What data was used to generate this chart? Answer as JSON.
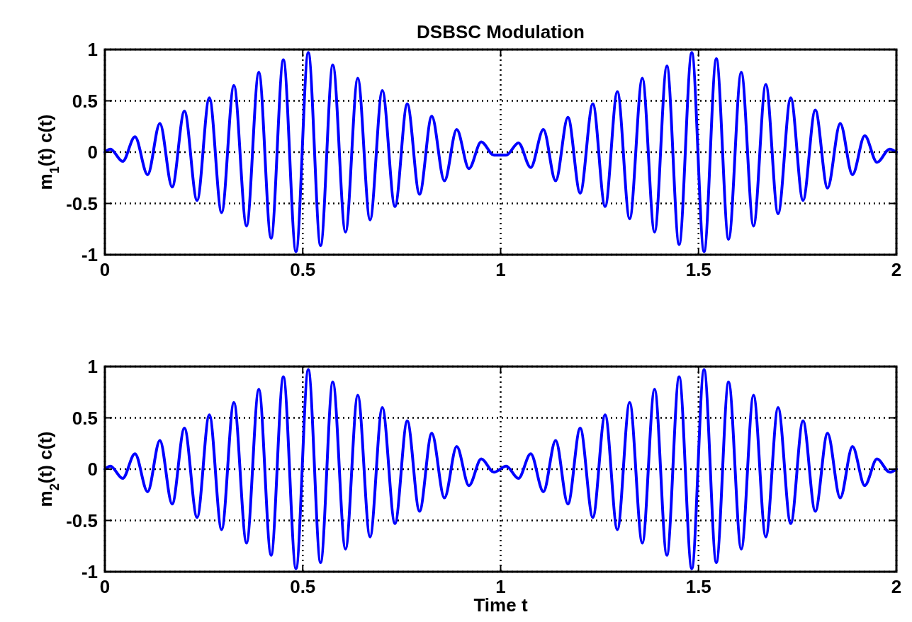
{
  "chart_data": [
    {
      "type": "line",
      "title": "DSBSC Modulation",
      "ylabel": "m$_{1}$(t) c(t)",
      "xlim": [
        0,
        2
      ],
      "ylim": [
        -1,
        1
      ],
      "xticks": [
        0,
        0.5,
        1,
        1.5,
        2
      ],
      "yticks": [
        -1,
        -0.5,
        0,
        0.5,
        1
      ],
      "grid": true,
      "line_style": "solid",
      "x": [
        0,
        0.014,
        0.045,
        0.076,
        0.108,
        0.139,
        0.17,
        0.201,
        0.233,
        0.264,
        0.295,
        0.326,
        0.358,
        0.389,
        0.42,
        0.451,
        0.483,
        0.514,
        0.545,
        0.576,
        0.608,
        0.639,
        0.67,
        0.701,
        0.733,
        0.764,
        0.795,
        0.826,
        0.858,
        0.889,
        0.92,
        0.951,
        0.983,
        1.014,
        1.045,
        1.076,
        1.108,
        1.139,
        1.17,
        1.201,
        1.233,
        1.264,
        1.295,
        1.326,
        1.358,
        1.389,
        1.42,
        1.451,
        1.483,
        1.514,
        1.545,
        1.576,
        1.608,
        1.639,
        1.67,
        1.701,
        1.733,
        1.764,
        1.795,
        1.826,
        1.858,
        1.889,
        1.92,
        1.951,
        1.983,
        2
      ],
      "series": [
        {
          "color": "#0000ff",
          "values": [
            0,
            0.03,
            -0.09,
            0.15,
            -0.22,
            0.28,
            -0.34,
            0.4,
            -0.47,
            0.53,
            -0.59,
            0.65,
            -0.72,
            0.78,
            -0.84,
            0.9,
            -0.97,
            0.97,
            -0.91,
            0.85,
            -0.78,
            0.72,
            -0.66,
            0.6,
            -0.53,
            0.47,
            -0.41,
            0.35,
            -0.28,
            0.22,
            -0.16,
            0.1,
            -0.03,
            -0.03,
            0.09,
            -0.15,
            0.22,
            -0.28,
            0.34,
            -0.4,
            0.47,
            -0.53,
            0.59,
            -0.65,
            0.72,
            -0.78,
            0.84,
            -0.9,
            0.97,
            -0.97,
            0.91,
            -0.85,
            0.78,
            -0.72,
            0.66,
            -0.6,
            0.53,
            -0.47,
            0.41,
            -0.35,
            0.28,
            -0.22,
            0.16,
            -0.1,
            0.03,
            0
          ]
        }
      ]
    },
    {
      "type": "line",
      "xlabel": "Time t",
      "ylabel": "m$_{2}$(t) c(t)",
      "xlim": [
        0,
        2
      ],
      "ylim": [
        -1,
        1
      ],
      "xticks": [
        0,
        0.5,
        1,
        1.5,
        2
      ],
      "yticks": [
        -1,
        -0.5,
        0,
        0.5,
        1
      ],
      "grid": true,
      "line_style": "solid",
      "x": [
        0,
        0.014,
        0.045,
        0.076,
        0.108,
        0.139,
        0.17,
        0.201,
        0.233,
        0.264,
        0.295,
        0.326,
        0.358,
        0.389,
        0.42,
        0.451,
        0.483,
        0.514,
        0.545,
        0.576,
        0.608,
        0.639,
        0.67,
        0.701,
        0.733,
        0.764,
        0.795,
        0.826,
        0.858,
        0.889,
        0.92,
        0.951,
        0.983,
        1.014,
        1.045,
        1.076,
        1.108,
        1.139,
        1.17,
        1.201,
        1.233,
        1.264,
        1.295,
        1.326,
        1.358,
        1.389,
        1.42,
        1.451,
        1.483,
        1.514,
        1.545,
        1.576,
        1.608,
        1.639,
        1.67,
        1.701,
        1.733,
        1.764,
        1.795,
        1.826,
        1.858,
        1.889,
        1.92,
        1.951,
        1.983,
        2
      ],
      "series": [
        {
          "color": "#0000ff",
          "values": [
            0,
            0.03,
            -0.09,
            0.15,
            -0.22,
            0.28,
            -0.34,
            0.4,
            -0.47,
            0.53,
            -0.59,
            0.65,
            -0.72,
            0.78,
            -0.84,
            0.9,
            -0.97,
            0.97,
            -0.91,
            0.85,
            -0.78,
            0.72,
            -0.66,
            0.6,
            -0.53,
            0.47,
            -0.41,
            0.35,
            -0.28,
            0.22,
            -0.16,
            0.1,
            -0.03,
            0.03,
            -0.09,
            0.15,
            -0.22,
            0.28,
            -0.34,
            0.4,
            -0.47,
            0.53,
            -0.59,
            0.65,
            -0.72,
            0.78,
            -0.84,
            0.9,
            -0.97,
            0.97,
            -0.91,
            0.85,
            -0.78,
            0.72,
            -0.66,
            0.6,
            -0.53,
            0.47,
            -0.41,
            0.35,
            -0.28,
            0.22,
            -0.16,
            0.1,
            -0.03,
            0
          ]
        }
      ]
    }
  ]
}
